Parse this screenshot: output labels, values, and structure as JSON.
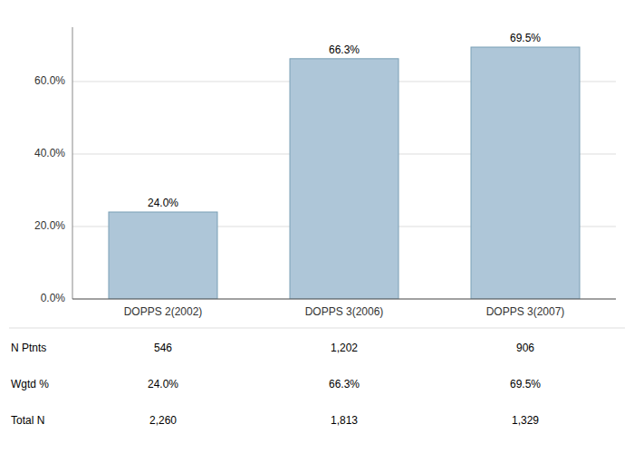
{
  "chart_data": {
    "type": "bar",
    "categories": [
      "DOPPS 2(2002)",
      "DOPPS 3(2006)",
      "DOPPS 3(2007)"
    ],
    "values": [
      24.0,
      66.3,
      69.5
    ],
    "value_labels": [
      "24.0%",
      "66.3%",
      "69.5%"
    ],
    "data_labels": true,
    "color": "#aec6d8",
    "ylim": [
      0,
      75
    ],
    "yticks": [
      {
        "value": 0,
        "label": "0.0%"
      },
      {
        "value": 20,
        "label": "20.0%"
      },
      {
        "value": 40,
        "label": "40.0%"
      },
      {
        "value": 60,
        "label": "60.0%"
      }
    ],
    "grid": true,
    "table_row_labels": [
      "N Ptnts",
      "Wgtd %",
      "Total N"
    ],
    "table_data": [
      [
        "546",
        "1,202",
        "906"
      ],
      [
        "24.0%",
        "66.3%",
        "69.5%"
      ],
      [
        "2,260",
        "1,813",
        "1,329"
      ]
    ]
  }
}
